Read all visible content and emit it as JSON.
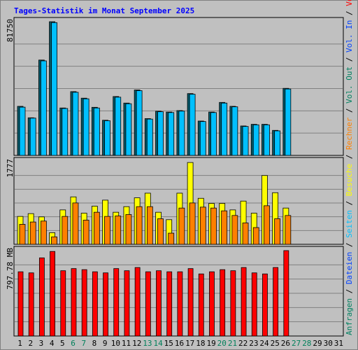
{
  "chart_data": {
    "type": "bar",
    "title": "Tages-Statistik im Monat September 2025",
    "categories": [
      "1",
      "2",
      "3",
      "4",
      "5",
      "6",
      "7",
      "8",
      "9",
      "10",
      "11",
      "12",
      "13",
      "14",
      "15",
      "16",
      "17",
      "18",
      "19",
      "20",
      "21",
      "22",
      "23",
      "24",
      "25",
      "26",
      "27",
      "28",
      "29",
      "30",
      "31"
    ],
    "weekend_days": [
      "6",
      "7",
      "13",
      "14",
      "20",
      "21",
      "27",
      "28"
    ],
    "panels": [
      {
        "name": "top",
        "ymax_label": "81750",
        "ymax": 81750,
        "series": [
          {
            "name": "Anfragen",
            "color": "#005a6a",
            "values": [
              30000,
              23000,
              58300,
              81750,
              29000,
              39000,
              35000,
              29400,
              21500,
              36000,
              32000,
              40000,
              22500,
              27000,
              26500,
              27400,
              37800,
              21000,
              26500,
              32400,
              30000,
              18000,
              19000,
              19000,
              15300,
              41000,
              0,
              0,
              0,
              0,
              0
            ]
          },
          {
            "name": "Dateien",
            "color": "#00c0ff",
            "values": [
              29500,
              22800,
              57800,
              81200,
              28700,
              38600,
              34600,
              29000,
              21200,
              35600,
              31600,
              39600,
              22200,
              26700,
              26200,
              27100,
              37400,
              20700,
              26200,
              32000,
              29700,
              17700,
              18700,
              18700,
              15000,
              40600,
              0,
              0,
              0,
              0,
              0
            ]
          }
        ]
      },
      {
        "name": "middle",
        "ymax_label": "1777",
        "ymax": 1777,
        "series": [
          {
            "name": "Seiten",
            "color": "#ffff00",
            "values": [
              600,
              660,
              590,
              250,
              740,
              1020,
              670,
              820,
              950,
              690,
              810,
              1000,
              1100,
              690,
              530,
              1100,
              1760,
              990,
              880,
              880,
              740,
              930,
              670,
              1480,
              1110,
              780,
              0,
              0,
              0,
              0,
              0
            ]
          },
          {
            "name": "Besuche",
            "color": "#ff8000",
            "values": [
              430,
              480,
              500,
              160,
              600,
              890,
              520,
              690,
              600,
              610,
              640,
              810,
              810,
              550,
              240,
              780,
              890,
              800,
              780,
              720,
              620,
              460,
              360,
              830,
              550,
              620,
              0,
              0,
              0,
              0,
              0
            ]
          }
        ]
      },
      {
        "name": "bottom",
        "ymax_label": "797.78 MB",
        "ymax": 797.78,
        "series": [
          {
            "name": "Volumen",
            "color": "#ff0000",
            "values": [
              600,
              590,
              730,
              790,
              610,
              630,
              620,
              600,
              590,
              630,
              610,
              640,
              600,
              610,
              600,
              600,
              630,
              580,
              600,
              620,
              610,
              640,
              590,
              580,
              640,
              797.78,
              0,
              0,
              0,
              0,
              0
            ]
          }
        ]
      }
    ],
    "right_legend": [
      {
        "text": "Anfragen",
        "color": "#008060"
      },
      {
        "text": " / ",
        "color": "#000000"
      },
      {
        "text": "Dateien",
        "color": "#0040ff"
      },
      {
        "text": " / ",
        "color": "#000000"
      },
      {
        "text": "Seiten",
        "color": "#00c0ff"
      },
      {
        "text": " / ",
        "color": "#000000"
      },
      {
        "text": "Besuche",
        "color": "#ffff00"
      },
      {
        "text": " / ",
        "color": "#000000"
      },
      {
        "text": "Rechner",
        "color": "#ff8000"
      },
      {
        "text": " / ",
        "color": "#000000"
      },
      {
        "text": "Vol. Out",
        "color": "#008060"
      },
      {
        "text": " / ",
        "color": "#000000"
      },
      {
        "text": "Vol. In",
        "color": "#0040ff"
      },
      {
        "text": " / ",
        "color": "#000000"
      },
      {
        "text": "Volumen",
        "color": "#ff0000"
      }
    ],
    "colors": {
      "background": "#c0c0c0",
      "title": "#0000ff",
      "weekday_label": "#000000",
      "weekend_label": "#00805a",
      "grid": "#808080"
    },
    "grid": true
  }
}
